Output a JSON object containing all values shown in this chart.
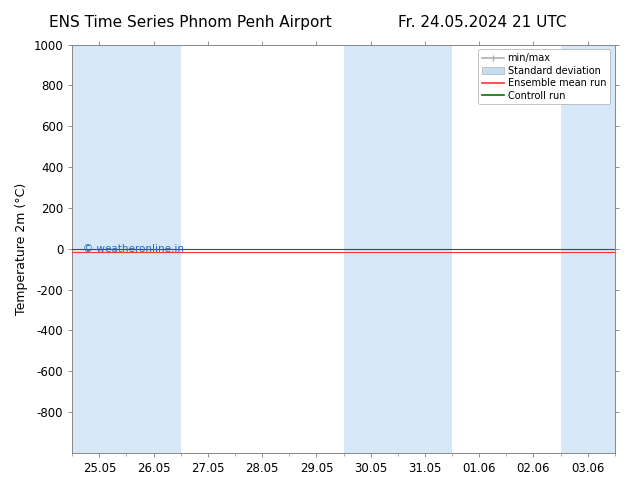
{
  "title_left": "ENS Time Series Phnom Penh Airport",
  "title_right": "Fr. 24.05.2024 21 UTC",
  "ylabel": "Temperature 2m (°C)",
  "ylim": [
    -1000,
    1000
  ],
  "yticks": [
    -800,
    -600,
    -400,
    -200,
    0,
    200,
    400,
    600,
    800,
    1000
  ],
  "xtick_labels": [
    "25.05",
    "26.05",
    "27.05",
    "28.05",
    "29.05",
    "30.05",
    "31.05",
    "01.06",
    "02.06",
    "03.06"
  ],
  "background_color": "#ffffff",
  "plot_bg_color": "#ffffff",
  "shaded_col_color": "#d6e8f7",
  "shaded_cols_x": [
    0,
    1,
    5,
    6,
    9
  ],
  "watermark": "© weatheronline.in",
  "watermark_color": "#1a6fbc",
  "legend_labels": [
    "min/max",
    "Standard deviation",
    "Ensemble mean run",
    "Controll run"
  ],
  "legend_colors_patch": [
    "#b0b0b0",
    "#c5ddf0"
  ],
  "ensemble_color": "#ff3333",
  "control_color": "#007700",
  "title_fontsize": 11,
  "axis_label_fontsize": 9,
  "tick_fontsize": 8.5
}
